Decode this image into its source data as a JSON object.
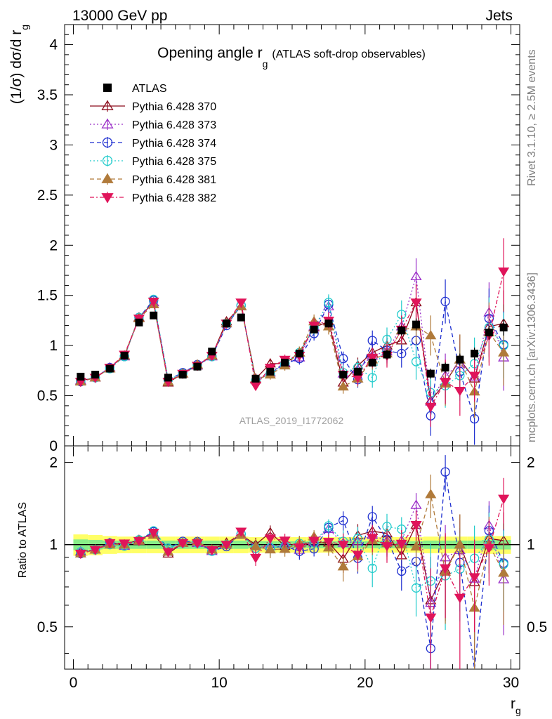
{
  "header": {
    "left": "13000 GeV pp",
    "right": "Jets"
  },
  "side_labels": {
    "rivet": "Rivet 3.1.10, ≥ 2.5M events",
    "mcplots": "mcplots.cern.ch [arXiv:1306.3436]"
  },
  "analysis_id": "ATLAS_2019_I1772062",
  "chart_data": [
    {
      "type": "scatter",
      "panel": "main",
      "title": "Opening angle r_g",
      "title_main": "Opening angle r",
      "title_sub": "g",
      "title_note": "(ATLAS soft-drop observables)",
      "ylabel": "(1/σ) dσ/d r_g",
      "ylabel_parts": [
        "(1/σ) dσ/d r",
        "g"
      ],
      "xlim": [
        -0.6,
        30.6
      ],
      "ylim": [
        0,
        4.2
      ],
      "yticks": [
        0,
        0.5,
        1,
        1.5,
        2,
        2.5,
        3,
        3.5,
        4
      ],
      "ytick_labels": [
        "0",
        "0.5",
        "1",
        "1.5",
        "2",
        "2.5",
        "3",
        "3.5",
        "4"
      ],
      "legend_position": "top-left",
      "x": [
        0.5,
        1.5,
        2.5,
        3.5,
        4.5,
        5.5,
        6.5,
        7.5,
        8.5,
        9.5,
        10.5,
        11.5,
        12.5,
        13.5,
        14.5,
        15.5,
        16.5,
        17.5,
        18.5,
        19.5,
        20.5,
        21.5,
        22.5,
        23.5,
        24.5,
        25.5,
        26.5,
        27.5,
        28.5,
        29.5
      ],
      "series": [
        {
          "name": "ATLAS",
          "color": "#000000",
          "marker": "square",
          "filled": true,
          "dash": "none",
          "values": [
            0.69,
            0.71,
            0.77,
            0.9,
            1.23,
            1.3,
            0.68,
            0.71,
            0.79,
            0.94,
            1.22,
            1.28,
            0.67,
            0.74,
            0.83,
            0.92,
            1.16,
            1.22,
            0.71,
            0.74,
            0.83,
            0.91,
            1.15,
            1.21,
            0.72,
            0.78,
            0.86,
            0.92,
            1.13,
            1.18
          ],
          "errors": [
            0.02,
            0.02,
            0.02,
            0.02,
            0.02,
            0.02,
            0.02,
            0.02,
            0.02,
            0.02,
            0.02,
            0.02,
            0.03,
            0.03,
            0.03,
            0.03,
            0.03,
            0.04,
            0.03,
            0.03,
            0.04,
            0.05,
            0.05,
            0.06,
            0.05,
            0.05,
            0.06,
            0.06,
            0.07,
            0.08
          ]
        },
        {
          "name": "Pythia 6.428 370",
          "color": "#8B0A1A",
          "marker": "triangle-up",
          "filled": false,
          "dash": "none",
          "values": [
            0.65,
            0.68,
            0.78,
            0.9,
            1.28,
            1.43,
            0.63,
            0.72,
            0.8,
            0.9,
            1.24,
            1.39,
            0.67,
            0.82,
            0.82,
            0.93,
            1.18,
            1.24,
            0.63,
            0.8,
            0.93,
            1.0,
            1.05,
            1.43,
            0.45,
            0.63,
            0.86,
            0.67,
            1.19,
            1.22
          ],
          "errors": [
            0.02,
            0.02,
            0.02,
            0.02,
            0.03,
            0.03,
            0.02,
            0.02,
            0.02,
            0.02,
            0.03,
            0.03,
            0.04,
            0.05,
            0.05,
            0.06,
            0.07,
            0.08,
            0.07,
            0.08,
            0.1,
            0.12,
            0.14,
            0.18,
            0.2,
            0.22,
            0.25,
            0.26,
            0.3,
            0.33
          ]
        },
        {
          "name": "Pythia 6.428 373",
          "color": "#9B30C8",
          "marker": "triangle-up",
          "filled": false,
          "dash": "2,3",
          "values": [
            0.65,
            0.68,
            0.78,
            0.89,
            1.27,
            1.43,
            0.64,
            0.72,
            0.8,
            0.89,
            1.22,
            1.39,
            0.66,
            0.73,
            0.83,
            0.88,
            1.19,
            1.39,
            0.72,
            0.76,
            0.9,
            0.94,
            1.19,
            1.69,
            0.44,
            0.7,
            0.82,
            0.69,
            1.33,
            0.88
          ],
          "errors": [
            0.02,
            0.02,
            0.02,
            0.02,
            0.03,
            0.03,
            0.02,
            0.02,
            0.02,
            0.02,
            0.03,
            0.03,
            0.04,
            0.05,
            0.05,
            0.06,
            0.07,
            0.08,
            0.07,
            0.08,
            0.1,
            0.12,
            0.14,
            0.18,
            0.2,
            0.22,
            0.25,
            0.26,
            0.3,
            0.33
          ]
        },
        {
          "name": "Pythia 6.428 374",
          "color": "#1E2FD0",
          "marker": "circle",
          "filled": false,
          "dash": "6,4",
          "values": [
            0.64,
            0.68,
            0.78,
            0.89,
            1.28,
            1.45,
            0.66,
            0.73,
            0.81,
            0.89,
            1.2,
            1.4,
            0.65,
            0.72,
            0.82,
            0.87,
            1.12,
            1.41,
            0.87,
            0.66,
            1.05,
            0.95,
            0.92,
            1.05,
            0.3,
            1.44,
            0.74,
            0.27,
            1.27,
            1.01
          ],
          "errors": [
            0.02,
            0.02,
            0.02,
            0.02,
            0.03,
            0.03,
            0.02,
            0.02,
            0.02,
            0.02,
            0.03,
            0.03,
            0.04,
            0.05,
            0.05,
            0.06,
            0.07,
            0.08,
            0.07,
            0.08,
            0.1,
            0.12,
            0.14,
            0.18,
            0.2,
            0.22,
            0.25,
            0.26,
            0.3,
            0.33
          ]
        },
        {
          "name": "Pythia 6.428 375",
          "color": "#22CCCC",
          "marker": "circle",
          "filled": false,
          "dash": "2,3",
          "values": [
            0.65,
            0.68,
            0.77,
            0.89,
            1.28,
            1.46,
            0.66,
            0.72,
            0.8,
            0.89,
            1.22,
            1.4,
            0.65,
            0.72,
            0.82,
            0.93,
            1.18,
            1.43,
            0.73,
            0.78,
            0.68,
            1.06,
            1.31,
            0.84,
            0.53,
            0.6,
            0.7,
            0.82,
            1.18,
            1.0
          ],
          "errors": [
            0.02,
            0.02,
            0.02,
            0.02,
            0.03,
            0.03,
            0.02,
            0.02,
            0.02,
            0.02,
            0.03,
            0.03,
            0.04,
            0.05,
            0.05,
            0.06,
            0.07,
            0.08,
            0.07,
            0.08,
            0.1,
            0.12,
            0.14,
            0.18,
            0.2,
            0.22,
            0.25,
            0.26,
            0.3,
            0.33
          ]
        },
        {
          "name": "Pythia 6.428 381",
          "color": "#B07A3A",
          "marker": "triangle-up",
          "filled": true,
          "dash": "6,4",
          "values": [
            0.64,
            0.68,
            0.77,
            0.9,
            1.27,
            1.41,
            0.64,
            0.72,
            0.81,
            0.9,
            1.22,
            1.39,
            0.66,
            0.71,
            0.8,
            0.93,
            1.24,
            1.19,
            0.59,
            0.67,
            0.86,
            0.92,
            1.15,
            1.19,
            1.1,
            0.62,
            0.86,
            0.54,
            1.13,
            0.93
          ],
          "errors": [
            0.02,
            0.02,
            0.02,
            0.02,
            0.03,
            0.03,
            0.02,
            0.02,
            0.02,
            0.02,
            0.03,
            0.03,
            0.04,
            0.05,
            0.05,
            0.06,
            0.07,
            0.08,
            0.07,
            0.08,
            0.1,
            0.12,
            0.14,
            0.18,
            0.2,
            0.22,
            0.25,
            0.26,
            0.3,
            0.33
          ]
        },
        {
          "name": "Pythia 6.428 382",
          "color": "#E0145A",
          "marker": "triangle-down",
          "filled": true,
          "dash": "6,3,2,3",
          "values": [
            0.64,
            0.68,
            0.78,
            0.91,
            1.27,
            1.44,
            0.64,
            0.72,
            0.8,
            0.9,
            1.22,
            1.43,
            0.6,
            0.78,
            0.86,
            0.9,
            1.2,
            1.25,
            0.71,
            0.68,
            0.88,
            0.9,
            1.16,
            1.43,
            0.39,
            0.64,
            0.55,
            0.7,
            1.1,
            1.74
          ],
          "errors": [
            0.02,
            0.02,
            0.02,
            0.02,
            0.03,
            0.03,
            0.02,
            0.02,
            0.02,
            0.02,
            0.03,
            0.03,
            0.04,
            0.05,
            0.05,
            0.06,
            0.07,
            0.08,
            0.07,
            0.08,
            0.1,
            0.12,
            0.14,
            0.18,
            0.2,
            0.22,
            0.25,
            0.26,
            0.3,
            0.33
          ]
        }
      ]
    },
    {
      "type": "scatter",
      "panel": "ratio",
      "ylabel": "Ratio to ATLAS",
      "xlabel": "r_g",
      "xlabel_parts": [
        "r",
        "g"
      ],
      "xlim": [
        -0.6,
        30.6
      ],
      "ylim": [
        0.35,
        2.3
      ],
      "yticks": [
        0.5,
        1,
        2
      ],
      "ytick_labels": [
        "0.5",
        "1",
        "2"
      ],
      "xticks": [
        0,
        10,
        20,
        30
      ],
      "xtick_labels": [
        "0",
        "10",
        "20",
        "30"
      ],
      "reference_line": 1,
      "band_colors": {
        "inner": "#88EE88",
        "outer": "#FFFF66"
      },
      "band_inner": [
        0.045,
        0.04,
        0.035,
        0.035,
        0.035,
        0.035,
        0.035,
        0.035,
        0.035,
        0.035,
        0.035,
        0.035,
        0.03,
        0.03,
        0.03,
        0.03,
        0.03,
        0.03,
        0.03,
        0.03,
        0.03,
        0.03,
        0.03,
        0.03,
        0.035,
        0.035,
        0.035,
        0.035,
        0.04,
        0.04
      ],
      "band_outer": [
        0.09,
        0.085,
        0.075,
        0.07,
        0.07,
        0.07,
        0.07,
        0.07,
        0.07,
        0.07,
        0.07,
        0.07,
        0.065,
        0.065,
        0.065,
        0.065,
        0.065,
        0.065,
        0.065,
        0.065,
        0.065,
        0.065,
        0.065,
        0.065,
        0.07,
        0.07,
        0.07,
        0.07,
        0.075,
        0.075
      ]
    }
  ]
}
